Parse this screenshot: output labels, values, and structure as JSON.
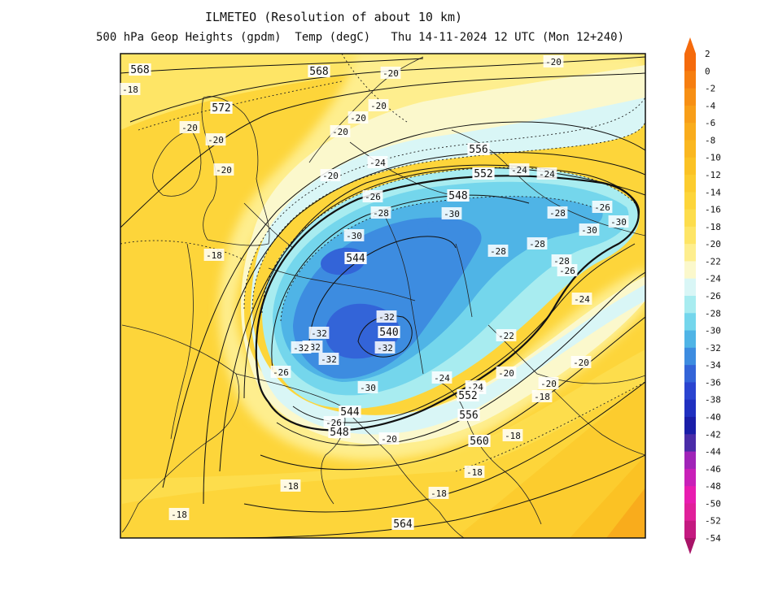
{
  "title": "ILMETEO (Resolution of about 10 km)",
  "subtitle": "500 hPa Geop Heights (gpdm)  Temp (degC)   Thu 14-11-2024 12 UTC (Mon 12+240)",
  "colors": {
    "background": "#ffffff",
    "temp_bands": [
      {
        "value": 2,
        "color": "#f56a0c"
      },
      {
        "value": 0,
        "color": "#f67e10"
      },
      {
        "value": -2,
        "color": "#f78f14"
      },
      {
        "value": -4,
        "color": "#f89e18"
      },
      {
        "value": -6,
        "color": "#f9ac1c"
      },
      {
        "value": -8,
        "color": "#fab720"
      },
      {
        "value": -10,
        "color": "#fbc224"
      },
      {
        "value": -12,
        "color": "#fccc2e"
      },
      {
        "value": -14,
        "color": "#fdd53a"
      },
      {
        "value": -16,
        "color": "#fddd4c"
      },
      {
        "value": -18,
        "color": "#fee566"
      },
      {
        "value": -20,
        "color": "#feee8e"
      },
      {
        "value": -22,
        "color": "#fbf8cc"
      },
      {
        "value": -24,
        "color": "#d9f6f6"
      },
      {
        "value": -26,
        "color": "#a8ecf0"
      },
      {
        "value": -28,
        "color": "#74d6ec"
      },
      {
        "value": -30,
        "color": "#4fb4e6"
      },
      {
        "value": -32,
        "color": "#3d8ce0"
      },
      {
        "value": -34,
        "color": "#3364d8"
      },
      {
        "value": -36,
        "color": "#2a44d0"
      },
      {
        "value": -38,
        "color": "#2030c0"
      },
      {
        "value": -40,
        "color": "#1a1ea8"
      },
      {
        "value": -42,
        "color": "#4a2ca8"
      },
      {
        "value": -44,
        "color": "#a024b8"
      },
      {
        "value": -46,
        "color": "#c820b8"
      },
      {
        "value": -48,
        "color": "#e81cb0"
      },
      {
        "value": -50,
        "color": "#e0209a"
      },
      {
        "value": -52,
        "color": "#c41a80"
      },
      {
        "value": -54,
        "color": "#a81468"
      }
    ]
  },
  "colorbar": {
    "labels": [
      "2",
      "0",
      "-2",
      "-4",
      "-6",
      "-8",
      "-10",
      "-12",
      "-14",
      "-16",
      "-18",
      "-20",
      "-22",
      "-24",
      "-26",
      "-28",
      "-30",
      "-32",
      "-34",
      "-36",
      "-38",
      "-40",
      "-42",
      "-44",
      "-46",
      "-48",
      "-50",
      "-52",
      "-54"
    ]
  },
  "geop_labels": [
    "568",
    "568",
    "572",
    "556",
    "552",
    "548",
    "544",
    "540",
    "548",
    "544",
    "552",
    "556",
    "560",
    "564"
  ],
  "temp_labels": [
    "-18",
    "-20",
    "-20",
    "-20",
    "-20",
    "-20",
    "-20",
    "-20",
    "-20",
    "-20",
    "-24",
    "-24",
    "-24",
    "-24",
    "-26",
    "-28",
    "-30",
    "-30",
    "-28",
    "-28",
    "-28",
    "-26",
    "-26",
    "-30",
    "-30",
    "-32",
    "-32",
    "-32",
    "-32",
    "-32",
    "-32",
    "-26",
    "-30",
    "-28",
    "-26",
    "-22",
    "-20",
    "-24",
    "-22",
    "-20",
    "-20",
    "-18",
    "-20",
    "-18",
    "-18",
    "-18",
    "-18",
    "-18",
    "-18",
    "-24"
  ]
}
